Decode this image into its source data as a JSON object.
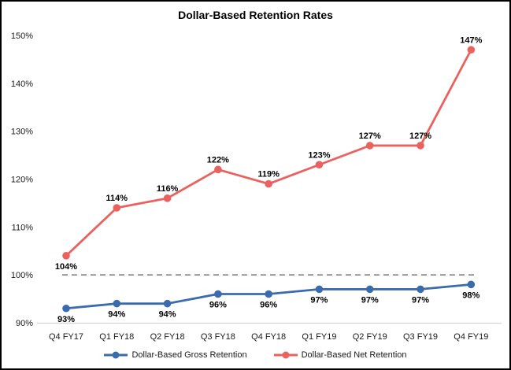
{
  "chart": {
    "title": "Dollar-Based Retention Rates"
  },
  "chart_data": {
    "type": "line",
    "title": "Dollar-Based Retention Rates",
    "categories": [
      "Q4 FY17",
      "Q1 FY18",
      "Q2 FY18",
      "Q3 FY18",
      "Q4 FY18",
      "Q1 FY19",
      "Q2 FY19",
      "Q3 FY19",
      "Q4 FY19"
    ],
    "series": [
      {
        "name": "Dollar-Based Gross Retention",
        "color": "#3A6BAD",
        "values": [
          93,
          94,
          94,
          96,
          96,
          97,
          97,
          97,
          98
        ],
        "labels": [
          "93%",
          "94%",
          "94%",
          "96%",
          "96%",
          "97%",
          "97%",
          "97%",
          "98%"
        ],
        "label_side": "below",
        "label_side_exceptions": []
      },
      {
        "name": "Dollar-Based Net Retention",
        "color": "#EA615E",
        "values": [
          104,
          114,
          116,
          122,
          119,
          123,
          127,
          127,
          147
        ],
        "labels": [
          "104%",
          "114%",
          "116%",
          "122%",
          "119%",
          "123%",
          "127%",
          "127%",
          "147%"
        ],
        "label_side": "above",
        "label_side_exceptions": [
          0
        ]
      }
    ],
    "yticks": [
      {
        "value": 90,
        "label": "90%"
      },
      {
        "value": 100,
        "label": "100%"
      },
      {
        "value": 110,
        "label": "110%"
      },
      {
        "value": 120,
        "label": "120%"
      },
      {
        "value": 130,
        "label": "130%"
      },
      {
        "value": 140,
        "label": "140%"
      },
      {
        "value": 150,
        "label": "150%"
      }
    ],
    "ylim": [
      90,
      152
    ],
    "xlabel": "",
    "ylabel": "",
    "grid": false,
    "legend_position": "bottom",
    "reference_line": {
      "value": 100,
      "style": "dashed",
      "color": "#808080"
    },
    "axis_line_color": "#D4D4D4"
  }
}
